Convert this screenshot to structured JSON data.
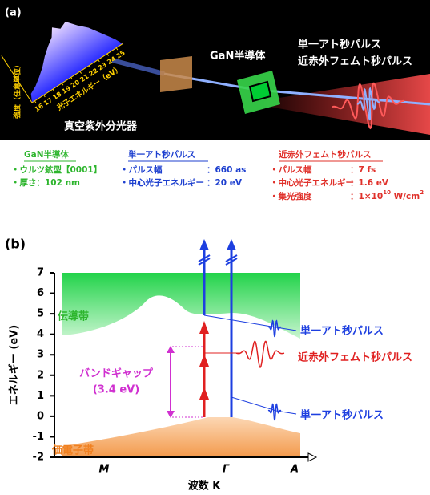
{
  "panel_a": {
    "label": "(a)",
    "spectrum": {
      "y_label": "強度（任意単位）",
      "x_label": "光子エネルギー（eV）",
      "ticks": [
        16,
        17,
        18,
        19,
        20,
        21,
        22,
        23,
        24,
        25
      ]
    },
    "labels": {
      "semiconductor": "GaN半導体",
      "attosecond": "単一アト秒パルス",
      "femtosecond": "近赤外フェムト秒パルス",
      "spectrometer": "真空紫外分光器"
    }
  },
  "info": {
    "gan": {
      "title": "GaN半導体",
      "items": [
        "・ウルツ鉱型【0001】",
        "・厚さ：102 nm"
      ]
    },
    "attosecond": {
      "title": "単一アト秒パルス",
      "items": [
        [
          "・パルス幅",
          "：660 as"
        ],
        [
          "・中心光子エネルギー",
          "：20 eV"
        ]
      ]
    },
    "femtosecond": {
      "title": "近赤外フェムト秒パルス",
      "items": [
        [
          "・パルス幅",
          "：7 fs"
        ],
        [
          "・中心光子エネルギー",
          "：1.6 eV"
        ]
      ],
      "intensity": {
        "label": "・集光強度",
        "parts": [
          "：1×10",
          "10",
          " W/cm",
          "2"
        ]
      }
    }
  },
  "panel_b": {
    "label": "(b)",
    "y_label": "エネルギー (eV)",
    "ylim": [
      -2,
      7
    ],
    "yticks": [
      -2,
      -1,
      0,
      1,
      2,
      3,
      4,
      5,
      6,
      7
    ],
    "x_label": "波数 K",
    "x_points": [
      "M",
      "Γ",
      "A"
    ],
    "conduction_band": "伝導帯",
    "valence_band": "価電子帯",
    "band_gap": [
      "バンドギャップ",
      "(3.4 eV)"
    ],
    "pulses": [
      "単一アト秒パルス",
      "近赤外フェムト秒パルス",
      "単一アト秒パルス"
    ]
  }
}
